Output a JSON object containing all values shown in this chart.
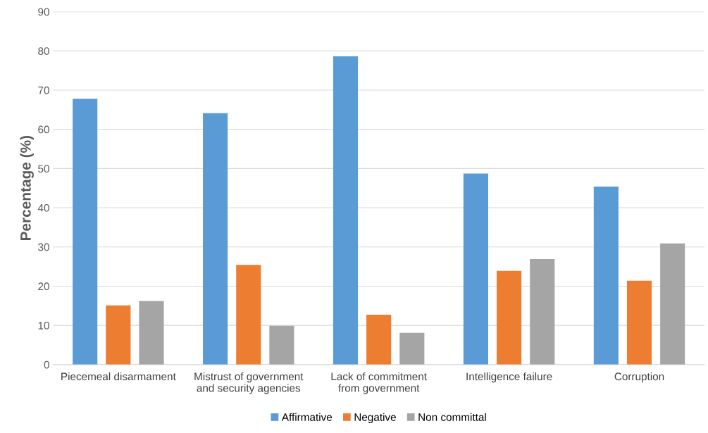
{
  "chart_data": {
    "type": "bar",
    "ylabel": "Percentage (%)",
    "categories": [
      "Piecemeal disarmament",
      "Mistrust of government\nand security agencies",
      "Lack of commitment\nfrom government",
      "Intelligence failure",
      "Corruption"
    ],
    "series": [
      {
        "name": "Affirmative",
        "color": "#5b9bd5",
        "values": [
          67.8,
          64.1,
          78.6,
          48.7,
          45.4
        ]
      },
      {
        "name": "Negative",
        "color": "#ed7d31",
        "values": [
          15.1,
          25.4,
          12.7,
          23.9,
          21.4
        ]
      },
      {
        "name": "Non committal",
        "color": "#a5a5a5",
        "values": [
          16.2,
          9.9,
          8.1,
          26.9,
          30.9
        ]
      }
    ],
    "ylim": [
      0,
      90
    ],
    "yticks": [
      0,
      10,
      20,
      30,
      40,
      50,
      60,
      70,
      80,
      90
    ],
    "grid": "y",
    "legend": "bottom"
  }
}
